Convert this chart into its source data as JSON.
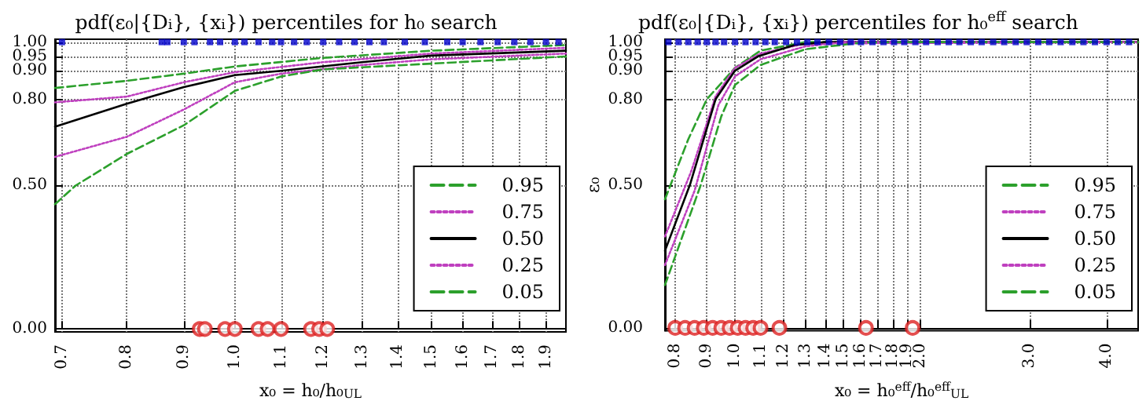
{
  "chart_data": [
    {
      "type": "line",
      "title": "pdf(ε₀|{D$_{i}$}, {x$_{i}$}) percentiles for h₀ search",
      "xlabel": "x₀ = h₀/h₀$_{UL}$",
      "log": "x",
      "grid": true,
      "legend": "bottom right",
      "xlim": [
        0.69,
        1.98
      ],
      "xticks": [
        0.7,
        0.8,
        0.9,
        {
          "value": 1,
          "label": "1.0"
        },
        1.1,
        1.2,
        1.3,
        1.4,
        1.5,
        1.6,
        1.7,
        1.8,
        1.9
      ],
      "ylim": [
        -0.01,
        1.01
      ],
      "yticks": [
        {
          "value": 0,
          "label": "0.00"
        },
        {
          "value": 0.5,
          "label": "0.50"
        },
        {
          "value": 0.8,
          "label": "0.80"
        },
        {
          "value": 0.9,
          "label": "0.90"
        },
        {
          "value": 0.95,
          "label": "0.95"
        },
        {
          "value": 1,
          "label": "1.00"
        }
      ],
      "series": [
        {
          "name": "0.95",
          "color": "#2ca02c",
          "line_style": "dashed",
          "x": [
            0.69,
            0.8,
            0.9,
            1.0,
            1.2,
            1.5,
            1.98
          ],
          "values": [
            0.84,
            0.865,
            0.89,
            0.915,
            0.945,
            0.97,
            0.99
          ]
        },
        {
          "name": "0.75",
          "color": "#bf40bf",
          "line_style": "dotted",
          "x": [
            0.69,
            0.8,
            0.9,
            1.0,
            1.2,
            1.5,
            1.98
          ],
          "values": [
            0.79,
            0.81,
            0.86,
            0.895,
            0.93,
            0.96,
            0.98
          ]
        },
        {
          "name": "0.50",
          "color": "#000000",
          "line_style": "solid",
          "x": [
            0.69,
            0.8,
            0.9,
            1.0,
            1.1,
            1.3,
            1.5,
            1.98
          ],
          "values": [
            0.705,
            0.785,
            0.843,
            0.885,
            0.9,
            0.93,
            0.953,
            0.97
          ]
        },
        {
          "name": "0.25",
          "color": "#bf40bf",
          "line_style": "dotted",
          "x": [
            0.69,
            0.8,
            0.9,
            1.0,
            1.1,
            1.3,
            1.5,
            1.98
          ],
          "values": [
            0.6,
            0.67,
            0.765,
            0.86,
            0.89,
            0.92,
            0.94,
            0.96
          ]
        },
        {
          "name": "0.05",
          "color": "#2ca02c",
          "line_style": "dashed",
          "x": [
            0.69,
            0.72,
            0.8,
            0.9,
            1.0,
            1.1,
            1.2,
            1.5,
            1.98
          ],
          "values": [
            0.435,
            0.5,
            0.61,
            0.71,
            0.83,
            0.88,
            0.905,
            0.925,
            0.95
          ]
        },
        {
          "type": "scatter",
          "color": "#0000cc",
          "marker": "square",
          "x": [
            0.7,
            0.86,
            0.87,
            0.9,
            0.92,
            0.95,
            0.97,
            1.0,
            1.02,
            1.05,
            1.08,
            1.1,
            1.13,
            1.16,
            1.2,
            1.24,
            1.28,
            1.32,
            1.36,
            1.42,
            1.48,
            1.55,
            1.6,
            1.66,
            1.72,
            1.78,
            1.84,
            1.9,
            1.95
          ],
          "values": [
            1,
            1,
            1,
            1,
            1,
            1,
            1,
            1,
            1,
            1,
            1,
            1,
            1,
            1,
            1,
            1,
            1,
            1,
            1,
            1,
            1,
            1,
            1,
            1,
            1,
            1,
            1,
            1,
            1
          ]
        },
        {
          "type": "scatter",
          "color": "#dd2222",
          "marker": "circle",
          "x": [
            0.93,
            0.94,
            0.98,
            1.0,
            1.05,
            1.07,
            1.1,
            1.17,
            1.19,
            1.21
          ],
          "values": [
            0,
            0,
            0,
            0,
            0,
            0,
            0,
            0,
            0,
            0
          ]
        }
      ]
    },
    {
      "type": "line",
      "title": "pdf(ε₀|{D$_{i}$}, {x$_{i}$}) percentiles for h₀$^{eff}$ search",
      "xlabel": "x₀ = h₀$^{eff}$/h₀$^{eff}$$_{UL}$",
      "ylabel": "ε₀",
      "log": "x",
      "grid": true,
      "legend": "bottom right",
      "xlim": [
        0.77,
        4.5
      ],
      "xticks": [
        0.8,
        0.9,
        {
          "value": 1,
          "label": "1.0"
        },
        1.1,
        1.2,
        1.3,
        1.4,
        1.5,
        1.6,
        1.7,
        1.8,
        1.9,
        {
          "value": 2,
          "label": "2.0"
        },
        {
          "value": 3,
          "label": "3.0"
        },
        {
          "value": 4,
          "label": "4.0"
        }
      ],
      "ylim": [
        -0.01,
        1.01
      ],
      "yticks": [
        {
          "value": 0,
          "label": "0.00"
        },
        {
          "value": 0.5,
          "label": "0.50"
        },
        {
          "value": 0.8,
          "label": "0.80"
        },
        {
          "value": 0.9,
          "label": "0.90"
        },
        {
          "value": 0.95,
          "label": "0.95"
        },
        {
          "value": 1,
          "label": "1.00"
        }
      ],
      "series": [
        {
          "name": "0.95",
          "color": "#2ca02c",
          "line_style": "dashed",
          "x": [
            0.77,
            0.84,
            0.9,
            1.0,
            1.1,
            1.3,
            4.5
          ],
          "values": [
            0.45,
            0.66,
            0.8,
            0.91,
            0.97,
            1.0,
            1.0
          ]
        },
        {
          "name": "0.75",
          "color": "#bf40bf",
          "line_style": "dotted",
          "x": [
            0.77,
            0.85,
            0.93,
            1.0,
            1.1,
            1.3,
            4.5
          ],
          "values": [
            0.32,
            0.55,
            0.81,
            0.91,
            0.96,
            0.995,
            1.0
          ]
        },
        {
          "name": "0.50",
          "color": "#000000",
          "line_style": "solid",
          "x": [
            0.77,
            0.845,
            0.93,
            1.0,
            1.09,
            1.25,
            1.4,
            4.5
          ],
          "values": [
            0.27,
            0.5,
            0.8,
            0.9,
            0.95,
            0.99,
            1.0,
            1.0
          ]
        },
        {
          "name": "0.25",
          "color": "#bf40bf",
          "line_style": "dotted",
          "x": [
            0.77,
            0.86,
            0.94,
            1.0,
            1.1,
            1.3,
            1.5,
            4.5
          ],
          "values": [
            0.22,
            0.48,
            0.78,
            0.88,
            0.94,
            0.985,
            1.0,
            1.0
          ]
        },
        {
          "name": "0.05",
          "color": "#2ca02c",
          "line_style": "dashed",
          "x": [
            0.77,
            0.88,
            0.95,
            1.0,
            1.1,
            1.3,
            1.6,
            2.0,
            4.5
          ],
          "values": [
            0.15,
            0.5,
            0.74,
            0.85,
            0.92,
            0.975,
            0.998,
            1.0,
            1.0
          ]
        },
        {
          "type": "scatter",
          "color": "#0000cc",
          "marker": "square",
          "x": [
            0.78,
            0.81,
            0.84,
            0.87,
            0.9,
            0.93,
            0.96,
            1.0,
            1.04,
            1.08,
            1.12,
            1.16,
            1.21,
            1.26,
            1.31,
            1.36,
            1.42,
            1.48,
            1.54,
            1.6,
            1.67,
            1.74,
            1.81,
            1.88,
            1.96,
            2.04,
            2.13,
            2.22,
            2.31,
            2.41,
            2.51,
            2.62,
            2.73,
            2.85,
            2.97,
            3.1,
            3.23,
            3.37,
            3.52,
            3.67,
            3.83,
            4.0,
            4.17,
            4.35
          ],
          "values": [
            1,
            1,
            1,
            1,
            1,
            1,
            1,
            1,
            1,
            1,
            1,
            1,
            1,
            1,
            1,
            1,
            1,
            1,
            1,
            1,
            1,
            1,
            1,
            1,
            1,
            1,
            1,
            1,
            1,
            1,
            1,
            1,
            1,
            1,
            1,
            1,
            1,
            1,
            1,
            1,
            1,
            1,
            1,
            1
          ]
        },
        {
          "type": "scatter",
          "color": "#dd2222",
          "marker": "circle",
          "x": [
            0.8,
            0.83,
            0.86,
            0.89,
            0.92,
            0.95,
            0.98,
            1.01,
            1.04,
            1.07,
            1.1,
            1.18,
            1.63,
            1.94
          ],
          "values": [
            0,
            0,
            0,
            0,
            0,
            0,
            0,
            0,
            0,
            0,
            0,
            0,
            0,
            0
          ]
        }
      ]
    }
  ]
}
